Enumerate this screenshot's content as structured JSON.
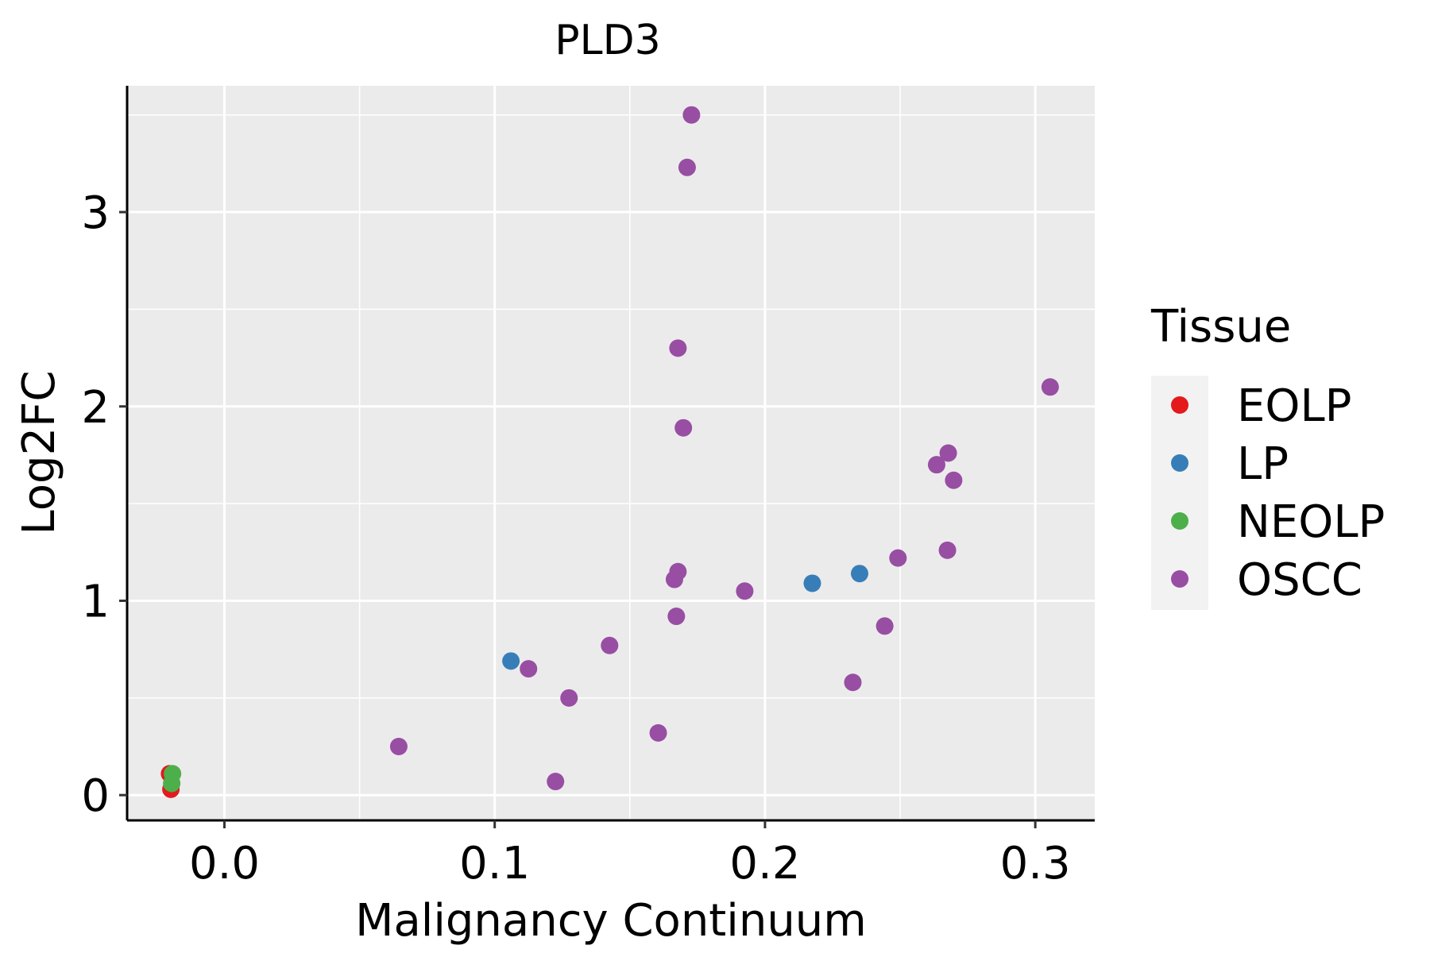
{
  "chart_data": {
    "type": "scatter",
    "title": "PLD3",
    "xlabel": "Malignancy Continuum",
    "ylabel": "Log2FC",
    "xlim": [
      -0.036,
      0.322
    ],
    "ylim": [
      -0.13,
      3.65
    ],
    "x_ticks": [
      0.0,
      0.1,
      0.2,
      0.3
    ],
    "x_tick_labels": [
      "0.0",
      "0.1",
      "0.2",
      "0.3"
    ],
    "y_ticks": [
      0,
      1,
      2,
      3
    ],
    "y_tick_labels": [
      "0",
      "1",
      "2",
      "3"
    ],
    "grid": true,
    "panel_background": "#EBEBEB",
    "legend": {
      "title": "Tissue",
      "position": "right"
    },
    "series": [
      {
        "name": "EOLP",
        "color": "#E41A1C",
        "points": [
          [
            -0.0203,
            0.11
          ],
          [
            -0.0198,
            0.03
          ]
        ]
      },
      {
        "name": "LP",
        "color": "#377EB8",
        "points": [
          [
            0.106,
            0.69
          ],
          [
            0.2175,
            1.09
          ],
          [
            0.235,
            1.14
          ]
        ]
      },
      {
        "name": "NEOLP",
        "color": "#4DAF4A",
        "points": [
          [
            -0.0192,
            0.11
          ],
          [
            -0.0195,
            0.06
          ]
        ]
      },
      {
        "name": "OSCC",
        "color": "#984EA3",
        "points": [
          [
            0.0645,
            0.25
          ],
          [
            0.1125,
            0.65
          ],
          [
            0.1225,
            0.07
          ],
          [
            0.1275,
            0.5
          ],
          [
            0.1425,
            0.77
          ],
          [
            0.1605,
            0.32
          ],
          [
            0.1665,
            1.11
          ],
          [
            0.1672,
            0.92
          ],
          [
            0.1678,
            1.15
          ],
          [
            0.1678,
            2.3
          ],
          [
            0.1698,
            1.89
          ],
          [
            0.1712,
            3.23
          ],
          [
            0.1728,
            3.5
          ],
          [
            0.1925,
            1.05
          ],
          [
            0.2325,
            0.58
          ],
          [
            0.2443,
            0.87
          ],
          [
            0.2492,
            1.22
          ],
          [
            0.2635,
            1.7
          ],
          [
            0.2675,
            1.26
          ],
          [
            0.2678,
            1.76
          ],
          [
            0.2698,
            1.62
          ],
          [
            0.3055,
            2.1
          ]
        ]
      }
    ]
  }
}
